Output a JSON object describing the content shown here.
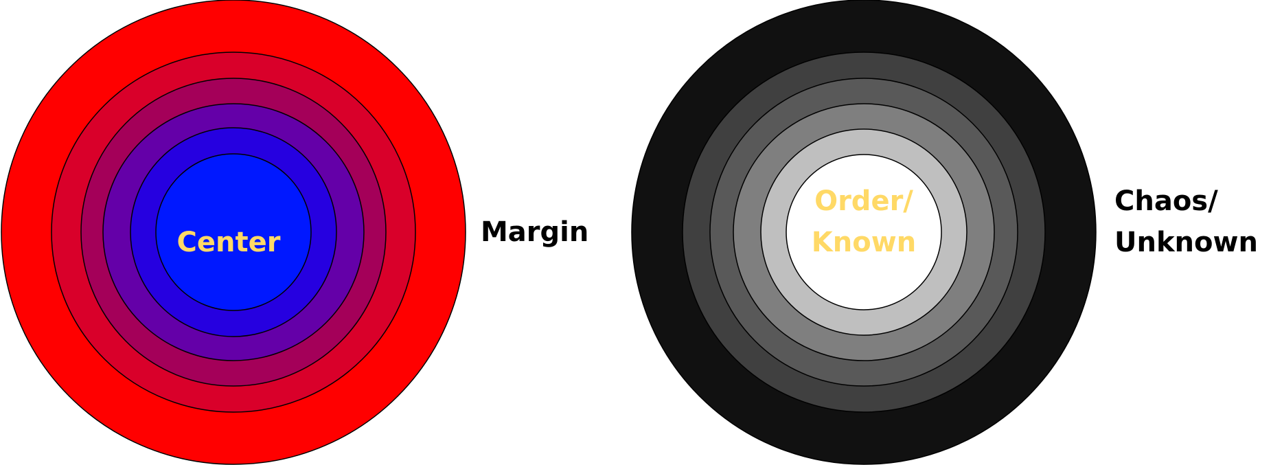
{
  "diagrams": [
    {
      "rings": [
        {
          "fill": "#ff0000"
        },
        {
          "fill": "#d9002a"
        },
        {
          "fill": "#a40059"
        },
        {
          "fill": "#6400a8"
        },
        {
          "fill": "#2600e0"
        },
        {
          "fill": "#0018ff"
        }
      ],
      "center_label": [
        "Center"
      ],
      "center_label_color": "#ffd966",
      "side_label": [
        "Margin"
      ],
      "side_label_color": "#000000"
    },
    {
      "rings": [
        {
          "fill": "#111111"
        },
        {
          "fill": "#404040"
        },
        {
          "fill": "#595959"
        },
        {
          "fill": "#7f7f7f"
        },
        {
          "fill": "#bfbfbf"
        },
        {
          "fill": "#ffffff"
        }
      ],
      "center_label": [
        "Order/",
        "Known"
      ],
      "center_label_color": "#ffd966",
      "side_label": [
        "Chaos/",
        "Unknown"
      ],
      "side_label_color": "#000000"
    }
  ]
}
